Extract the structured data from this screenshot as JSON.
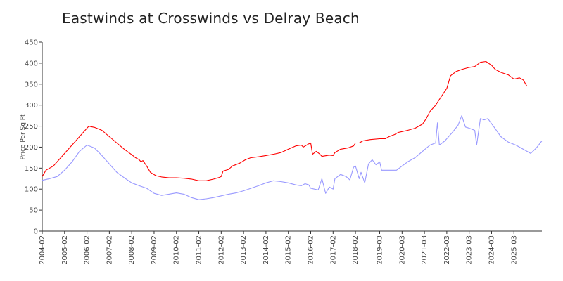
{
  "chart_data": {
    "type": "line",
    "title": "Eastwinds at Crosswinds vs Delray Beach",
    "xlabel": "",
    "ylabel": "Price Per Sq Ft",
    "ylim": [
      0,
      450
    ],
    "yticks": [
      0,
      50,
      100,
      150,
      200,
      250,
      300,
      350,
      400,
      450
    ],
    "xticks": [
      "2004-02",
      "2005-02",
      "2006-02",
      "2007-02",
      "2008-02",
      "2009-02",
      "2010-02",
      "2011-02",
      "2012-02",
      "2013-02",
      "2014-02",
      "2015-02",
      "2016-02",
      "2017-02",
      "2018-02",
      "2019-03",
      "2020-03",
      "2021-03",
      "2022-03",
      "2023-03",
      "2024-03",
      "2025-03"
    ],
    "grid": false,
    "legend": "none",
    "series": [
      {
        "color": "#ff0000",
        "points": [
          [
            "2004-02",
            130
          ],
          [
            "2004-04",
            145
          ],
          [
            "2004-08",
            155
          ],
          [
            "2004-12",
            175
          ],
          [
            "2005-04",
            195
          ],
          [
            "2005-08",
            215
          ],
          [
            "2005-12",
            235
          ],
          [
            "2006-02",
            245
          ],
          [
            "2006-03",
            250
          ],
          [
            "2006-06",
            247
          ],
          [
            "2006-10",
            240
          ],
          [
            "2007-02",
            225
          ],
          [
            "2007-06",
            210
          ],
          [
            "2007-10",
            195
          ],
          [
            "2008-02",
            182
          ],
          [
            "2008-04",
            175
          ],
          [
            "2008-06",
            170
          ],
          [
            "2008-07",
            165
          ],
          [
            "2008-08",
            168
          ],
          [
            "2008-10",
            155
          ],
          [
            "2008-12",
            140
          ],
          [
            "2009-03",
            132
          ],
          [
            "2009-06",
            129
          ],
          [
            "2009-10",
            127
          ],
          [
            "2010-02",
            127
          ],
          [
            "2010-06",
            126
          ],
          [
            "2010-10",
            124
          ],
          [
            "2011-02",
            120
          ],
          [
            "2011-06",
            120
          ],
          [
            "2011-10",
            124
          ],
          [
            "2012-01",
            128
          ],
          [
            "2012-02",
            130
          ],
          [
            "2012-03",
            143
          ],
          [
            "2012-06",
            147
          ],
          [
            "2012-08",
            155
          ],
          [
            "2012-12",
            162
          ],
          [
            "2013-03",
            170
          ],
          [
            "2013-06",
            175
          ],
          [
            "2013-10",
            177
          ],
          [
            "2014-02",
            180
          ],
          [
            "2014-06",
            183
          ],
          [
            "2014-10",
            187
          ],
          [
            "2015-02",
            195
          ],
          [
            "2015-06",
            203
          ],
          [
            "2015-09",
            205
          ],
          [
            "2015-10",
            200
          ],
          [
            "2016-01",
            208
          ],
          [
            "2016-02",
            210
          ],
          [
            "2016-03",
            183
          ],
          [
            "2016-05",
            190
          ],
          [
            "2016-07",
            183
          ],
          [
            "2016-08",
            178
          ],
          [
            "2016-12",
            181
          ],
          [
            "2017-02",
            180
          ],
          [
            "2017-03",
            187
          ],
          [
            "2017-06",
            195
          ],
          [
            "2017-10",
            198
          ],
          [
            "2018-01",
            203
          ],
          [
            "2018-02",
            210
          ],
          [
            "2018-04",
            210
          ],
          [
            "2018-06",
            215
          ],
          [
            "2018-10",
            218
          ],
          [
            "2019-03",
            220
          ],
          [
            "2019-06",
            220
          ],
          [
            "2019-08",
            225
          ],
          [
            "2019-11",
            230
          ],
          [
            "2020-01",
            235
          ],
          [
            "2020-03",
            237
          ],
          [
            "2020-06",
            240
          ],
          [
            "2020-10",
            245
          ],
          [
            "2021-02",
            255
          ],
          [
            "2021-04",
            268
          ],
          [
            "2021-06",
            285
          ],
          [
            "2021-09",
            300
          ],
          [
            "2021-12",
            320
          ],
          [
            "2022-03",
            340
          ],
          [
            "2022-05",
            370
          ],
          [
            "2022-08",
            380
          ],
          [
            "2022-11",
            385
          ],
          [
            "2023-03",
            390
          ],
          [
            "2023-06",
            392
          ],
          [
            "2023-09",
            402
          ],
          [
            "2023-12",
            404
          ],
          [
            "2024-03",
            395
          ],
          [
            "2024-05",
            385
          ],
          [
            "2024-08",
            378
          ],
          [
            "2024-12",
            372
          ],
          [
            "2025-03",
            362
          ],
          [
            "2025-06",
            365
          ],
          [
            "2025-08",
            360
          ],
          [
            "2025-10",
            345
          ]
        ]
      },
      {
        "color": "#9999ff",
        "points": [
          [
            "2004-02",
            121
          ],
          [
            "2004-06",
            125
          ],
          [
            "2004-10",
            130
          ],
          [
            "2005-02",
            145
          ],
          [
            "2005-06",
            165
          ],
          [
            "2005-10",
            190
          ],
          [
            "2006-02",
            205
          ],
          [
            "2006-06",
            198
          ],
          [
            "2006-10",
            180
          ],
          [
            "2007-02",
            160
          ],
          [
            "2007-06",
            140
          ],
          [
            "2007-10",
            127
          ],
          [
            "2008-02",
            115
          ],
          [
            "2008-06",
            108
          ],
          [
            "2008-10",
            102
          ],
          [
            "2009-02",
            90
          ],
          [
            "2009-06",
            85
          ],
          [
            "2009-10",
            88
          ],
          [
            "2010-02",
            91
          ],
          [
            "2010-06",
            88
          ],
          [
            "2010-10",
            80
          ],
          [
            "2011-02",
            75
          ],
          [
            "2011-06",
            77
          ],
          [
            "2011-10",
            80
          ],
          [
            "2012-02",
            84
          ],
          [
            "2012-06",
            88
          ],
          [
            "2012-10",
            91
          ],
          [
            "2013-02",
            96
          ],
          [
            "2013-06",
            102
          ],
          [
            "2013-10",
            108
          ],
          [
            "2014-02",
            115
          ],
          [
            "2014-06",
            120
          ],
          [
            "2014-10",
            118
          ],
          [
            "2015-02",
            115
          ],
          [
            "2015-06",
            110
          ],
          [
            "2015-09",
            108
          ],
          [
            "2015-11",
            113
          ],
          [
            "2016-01",
            110
          ],
          [
            "2016-02",
            102
          ],
          [
            "2016-04",
            100
          ],
          [
            "2016-06",
            98
          ],
          [
            "2016-08",
            125
          ],
          [
            "2016-10",
            90
          ],
          [
            "2016-12",
            105
          ],
          [
            "2017-02",
            100
          ],
          [
            "2017-03",
            125
          ],
          [
            "2017-06",
            135
          ],
          [
            "2017-09",
            130
          ],
          [
            "2017-11",
            122
          ],
          [
            "2018-01",
            152
          ],
          [
            "2018-02",
            155
          ],
          [
            "2018-04",
            125
          ],
          [
            "2018-05",
            140
          ],
          [
            "2018-07",
            115
          ],
          [
            "2018-09",
            160
          ],
          [
            "2018-11",
            170
          ],
          [
            "2019-01",
            158
          ],
          [
            "2019-03",
            165
          ],
          [
            "2019-04",
            145
          ],
          [
            "2019-08",
            145
          ],
          [
            "2019-12",
            145
          ],
          [
            "2020-03",
            155
          ],
          [
            "2020-06",
            165
          ],
          [
            "2020-10",
            175
          ],
          [
            "2021-02",
            190
          ],
          [
            "2021-06",
            205
          ],
          [
            "2021-09",
            210
          ],
          [
            "2021-10",
            258
          ],
          [
            "2021-11",
            205
          ],
          [
            "2022-02",
            215
          ],
          [
            "2022-06",
            235
          ],
          [
            "2022-09",
            252
          ],
          [
            "2022-11",
            275
          ],
          [
            "2023-01",
            248
          ],
          [
            "2023-03",
            245
          ],
          [
            "2023-06",
            240
          ],
          [
            "2023-07",
            205
          ],
          [
            "2023-09",
            268
          ],
          [
            "2023-11",
            265
          ],
          [
            "2024-01",
            268
          ],
          [
            "2024-04",
            250
          ],
          [
            "2024-08",
            225
          ],
          [
            "2024-12",
            212
          ],
          [
            "2025-04",
            205
          ],
          [
            "2025-08",
            195
          ],
          [
            "2025-12",
            185
          ],
          [
            "2026-03",
            198
          ],
          [
            "2026-06",
            215
          ]
        ]
      }
    ]
  }
}
